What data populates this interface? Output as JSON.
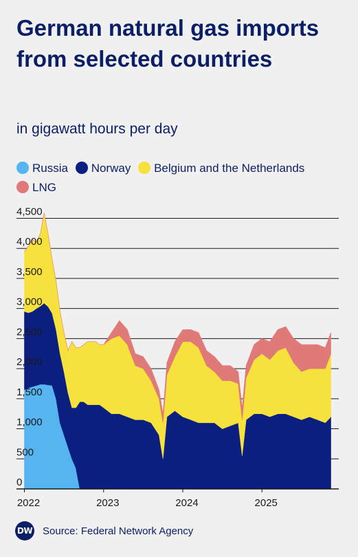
{
  "chart_data": {
    "type": "area",
    "stacked": true,
    "title": "German natural gas imports from selected countries",
    "subtitle": "in gigawatt hours per day",
    "xlabel": "",
    "ylabel": "",
    "ylim": [
      0,
      4700
    ],
    "yticks": [
      0,
      500,
      1000,
      1500,
      2000,
      2500,
      3000,
      3500,
      4000,
      4500
    ],
    "ytick_labels": [
      "0",
      "500",
      "1,000",
      "1,500",
      "2,000",
      "2,500",
      "3,000",
      "3,500",
      "4,000",
      "4,500"
    ],
    "xlim": [
      2021.9,
      2025.97
    ],
    "xticks": [
      2022,
      2023,
      2024,
      2025
    ],
    "xtick_labels": [
      "2022",
      "2023",
      "2024",
      "2025"
    ],
    "grid": "horizontal",
    "legend_position": "top",
    "x": [
      2022.0,
      2022.05,
      2022.1,
      2022.15,
      2022.2,
      2022.25,
      2022.3,
      2022.35,
      2022.4,
      2022.45,
      2022.5,
      2022.55,
      2022.6,
      2022.65,
      2022.7,
      2022.75,
      2022.8,
      2022.85,
      2022.9,
      2022.95,
      2023.0,
      2023.1,
      2023.2,
      2023.3,
      2023.4,
      2023.5,
      2023.6,
      2023.7,
      2023.75,
      2023.8,
      2023.9,
      2024.0,
      2024.1,
      2024.2,
      2024.3,
      2024.4,
      2024.5,
      2024.6,
      2024.7,
      2024.75,
      2024.8,
      2024.9,
      2025.0,
      2025.1,
      2025.2,
      2025.3,
      2025.4,
      2025.5,
      2025.6,
      2025.7,
      2025.8,
      2025.87
    ],
    "series": [
      {
        "name": "Russia",
        "color": "#56b4f0",
        "values": [
          1650,
          1680,
          1700,
          1720,
          1740,
          1740,
          1730,
          1720,
          1500,
          1100,
          900,
          700,
          500,
          350,
          0,
          0,
          0,
          0,
          0,
          0,
          0,
          0,
          0,
          0,
          0,
          0,
          0,
          0,
          0,
          0,
          0,
          0,
          0,
          0,
          0,
          0,
          0,
          0,
          0,
          0,
          0,
          0,
          0,
          0,
          0,
          0,
          0,
          0,
          0,
          0,
          0,
          0
        ]
      },
      {
        "name": "Norway",
        "color": "#0b1f80",
        "values": [
          1300,
          1250,
          1250,
          1280,
          1300,
          1350,
          1300,
          1200,
          1150,
          1150,
          1050,
          900,
          850,
          1000,
          1450,
          1450,
          1400,
          1400,
          1400,
          1400,
          1350,
          1250,
          1250,
          1200,
          1150,
          1150,
          1100,
          900,
          500,
          1200,
          1300,
          1200,
          1150,
          1100,
          1100,
          1100,
          1000,
          1050,
          1100,
          550,
          1150,
          1250,
          1250,
          1200,
          1250,
          1250,
          1200,
          1150,
          1200,
          1150,
          1100,
          1200
        ]
      },
      {
        "name": "Belgium and the Netherlands",
        "color": "#f7e13c",
        "values": [
          1000,
          1100,
          1200,
          1100,
          1200,
          1500,
          1200,
          900,
          800,
          700,
          650,
          700,
          1100,
          1000,
          900,
          950,
          1050,
          1050,
          1050,
          1000,
          1050,
          1250,
          1300,
          1200,
          900,
          850,
          700,
          600,
          600,
          700,
          900,
          1250,
          1300,
          1250,
          950,
          850,
          800,
          750,
          650,
          600,
          700,
          900,
          1000,
          950,
          1050,
          1100,
          900,
          800,
          800,
          850,
          900,
          1050
        ]
      },
      {
        "name": "LNG",
        "color": "#e07a78",
        "values": [
          0,
          0,
          0,
          0,
          0,
          0,
          0,
          0,
          0,
          0,
          0,
          0,
          0,
          0,
          0,
          0,
          0,
          0,
          0,
          0,
          0,
          100,
          250,
          250,
          200,
          200,
          200,
          150,
          150,
          200,
          250,
          200,
          200,
          250,
          250,
          250,
          250,
          250,
          200,
          200,
          200,
          250,
          250,
          300,
          350,
          350,
          400,
          450,
          400,
          400,
          350,
          350
        ]
      }
    ]
  },
  "footer": {
    "logo_text": "DW",
    "source": "Source: Federal Network Agency"
  }
}
